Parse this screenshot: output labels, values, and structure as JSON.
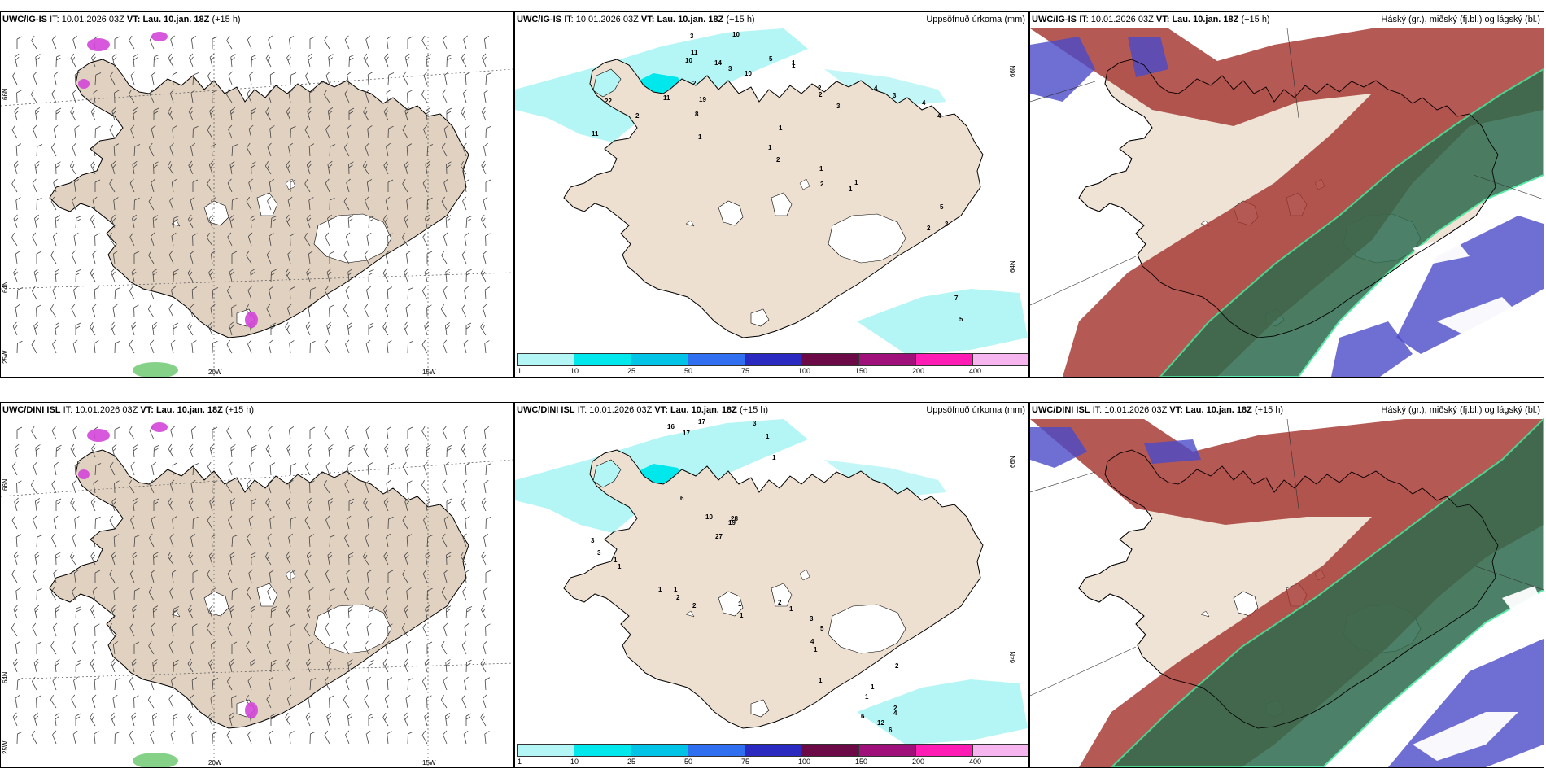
{
  "panels": [
    {
      "id": "top-left",
      "model": "UWC/IG-IS",
      "it_label": "IT:",
      "it_value": "10.01.2026 03Z",
      "vt_label": "VT:",
      "vt_value": "Lau. 10.jan. 18Z",
      "lead": "(+15 h)",
      "right_title": "",
      "axis": {
        "lat1": "66N",
        "lat2": "64N",
        "lon_sw": "25W",
        "lon1": "20W",
        "lon2": "15W"
      }
    },
    {
      "id": "top-middle",
      "model": "UWC/IG-IS",
      "it_label": "IT:",
      "it_value": "10.01.2026 03Z",
      "vt_label": "VT:",
      "vt_value": "Lau. 10.jan. 18Z",
      "lead": "(+15 h)",
      "right_title": "Uppsöfnuð úrkoma (mm)",
      "axis": {
        "lat1": "66N",
        "lat2": "64N"
      },
      "values": [
        "3",
        "10",
        "11",
        "10",
        "14",
        "5",
        "1",
        "3",
        "10",
        "2",
        "22",
        "19",
        "11",
        "8",
        "2",
        "11",
        "1",
        "1",
        "2",
        "2",
        "3",
        "4",
        "3",
        "4",
        "4",
        "1",
        "1",
        "2",
        "1",
        "2",
        "1",
        "1",
        "5",
        "3",
        "2",
        "7",
        "5"
      ]
    },
    {
      "id": "top-right",
      "model": "UWC/IG-IS",
      "it_label": "IT:",
      "it_value": "10.01.2026 03Z",
      "vt_label": "VT:",
      "vt_value": "Lau. 10.jan. 18Z",
      "lead": "(+15 h)",
      "right_title": "Háský (gr.), miðský (fj.bl.) og lágský (bl.)"
    },
    {
      "id": "bottom-left",
      "model": "UWC/DINI ISL",
      "it_label": "IT:",
      "it_value": "10.01.2026 03Z",
      "vt_label": "VT:",
      "vt_value": "Lau. 10.jan. 18Z",
      "lead": "(+15 h)",
      "right_title": "",
      "axis": {
        "lat1": "66N",
        "lat2": "64N",
        "lon_sw": "25W",
        "lon1": "20W",
        "lon2": "15W"
      }
    },
    {
      "id": "bottom-middle",
      "model": "UWC/DINI ISL",
      "it_label": "IT:",
      "it_value": "10.01.2026 03Z",
      "vt_label": "VT:",
      "vt_value": "Lau. 10.jan. 18Z",
      "lead": "(+15 h)",
      "right_title": "Uppsöfnuð úrkoma (mm)",
      "axis": {
        "lat1": "66N",
        "lat2": "64N"
      },
      "values": [
        "17",
        "16",
        "17",
        "3",
        "1",
        "1",
        "6",
        "10",
        "28",
        "27",
        "19",
        "3",
        "3",
        "1",
        "1",
        "1",
        "1",
        "2",
        "2",
        "1",
        "1",
        "2",
        "1",
        "3",
        "5",
        "4",
        "1",
        "2",
        "1",
        "1",
        "1",
        "2",
        "12",
        "6",
        "6",
        "4"
      ]
    },
    {
      "id": "bottom-right",
      "model": "UWC/DINI ISL",
      "it_label": "IT:",
      "it_value": "10.01.2026 03Z",
      "vt_label": "VT:",
      "vt_value": "Lau. 10.jan. 18Z",
      "lead": "(+15 h)",
      "right_title": "Háský (gr.), miðský (fj.bl.) og lágský (bl.)"
    }
  ],
  "precip_colorbar": {
    "labels": [
      "1",
      "10",
      "25",
      "50",
      "75",
      "100",
      "150",
      "200",
      "400"
    ],
    "colors": [
      "#b4f5f5",
      "#00e8ec",
      "#00c3e6",
      "#2f6ff0",
      "#2b2ac0",
      "#6c0a48",
      "#a0107a",
      "#ff1cb4",
      "#f7b5ef"
    ]
  },
  "colors": {
    "land": "#ede0d0",
    "land_tan": "#e1d1c1",
    "glacier": "#ffffff",
    "high_cloud": "#2f6b4e",
    "mid_cloud": "#a3342e",
    "low_cloud": "#4a4ac8",
    "cloud_edge": "#3ee89a",
    "precip_light": "#b4f5f5",
    "precip_mid": "#00e8ec",
    "precip_heavy": "#00c3e6",
    "snow_magenta": "#d346d8"
  }
}
